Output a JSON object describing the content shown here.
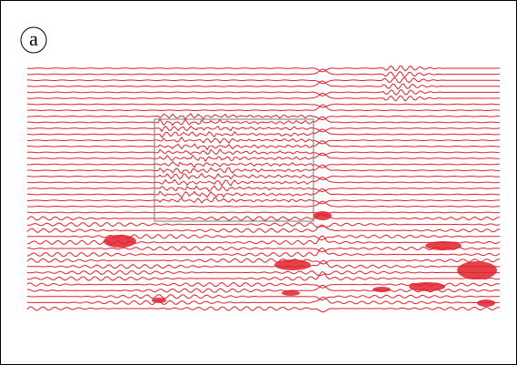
{
  "label": "a"
}
